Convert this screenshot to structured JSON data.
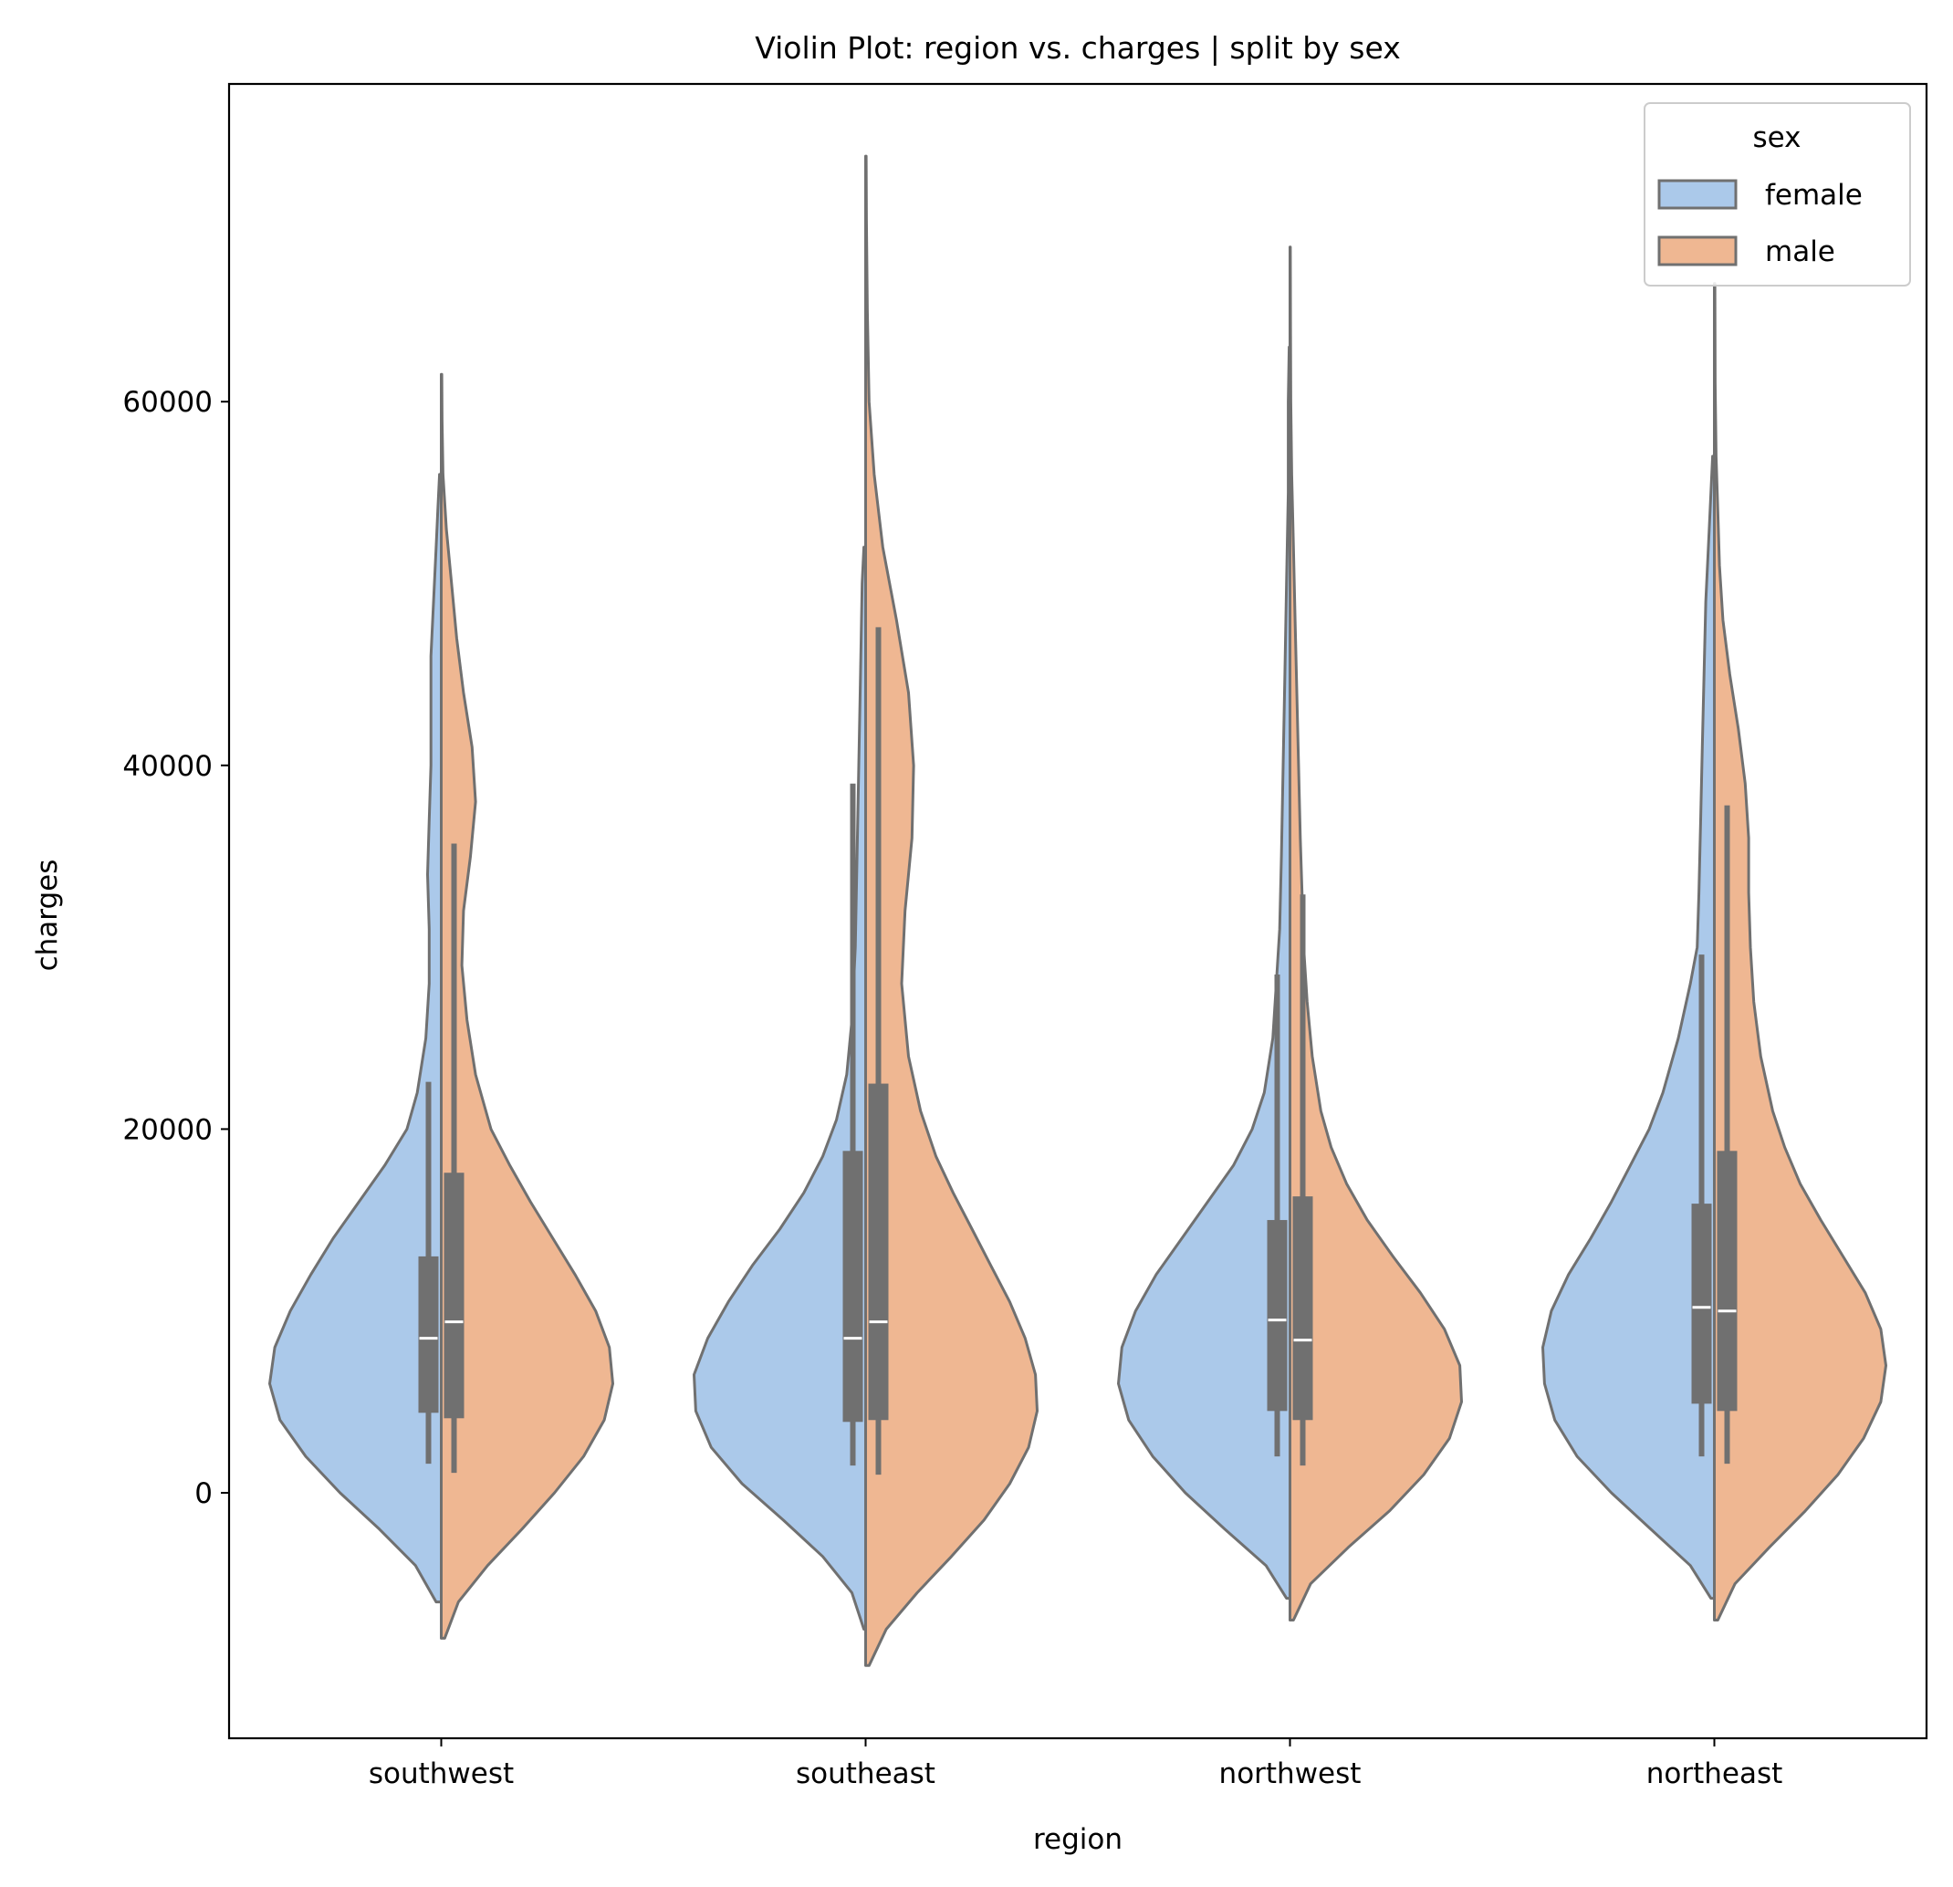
{
  "chart_data": {
    "type": "violin",
    "title": "Violin Plot: region vs. charges | split by sex",
    "xlabel": "region",
    "ylabel": "charges",
    "categories": [
      "southwest",
      "southeast",
      "northwest",
      "northeast"
    ],
    "ylim": [
      -13500,
      77500
    ],
    "yticks": [
      0,
      20000,
      40000,
      60000
    ],
    "grid": false,
    "split": true,
    "legend": {
      "title": "sex",
      "placement": "top-right",
      "entries": [
        "female",
        "male"
      ]
    },
    "colors": {
      "female": "#abc9ea",
      "male": "#efb792",
      "outline": "#707070",
      "box": "#707070",
      "median": "#ffffff"
    },
    "series": [
      {
        "name": "female",
        "violins": [
          {
            "category": "southwest",
            "density_y": [
              -6000,
              -4000,
              -2000,
              0,
              2000,
              4000,
              6000,
              8000,
              10000,
              12000,
              14000,
              16000,
              18000,
              20000,
              22000,
              25000,
              28000,
              31000,
              34000,
              37000,
              40000,
              43000,
              46000,
              48000,
              50000,
              52000,
              54000,
              56000
            ],
            "density_w": [
              0.03,
              0.15,
              0.36,
              0.59,
              0.79,
              0.94,
              1.0,
              0.97,
              0.88,
              0.76,
              0.63,
              0.48,
              0.33,
              0.2,
              0.14,
              0.09,
              0.07,
              0.07,
              0.08,
              0.07,
              0.06,
              0.06,
              0.06,
              0.05,
              0.04,
              0.03,
              0.02,
              0.01
            ],
            "box": {
              "whisker_low": 1600,
              "q1": 4400,
              "median": 8500,
              "q3": 13000,
              "whisker_high": 22600
            }
          },
          {
            "category": "southeast",
            "density_y": [
              -7500,
              -5500,
              -3500,
              -1500,
              500,
              2500,
              4500,
              6500,
              8500,
              10500,
              12500,
              14500,
              16500,
              18500,
              20500,
              23000,
              26000,
              30000,
              35000,
              40000,
              45000,
              50000,
              52000
            ],
            "density_w": [
              0.01,
              0.08,
              0.25,
              0.48,
              0.72,
              0.9,
              0.99,
              1.0,
              0.92,
              0.8,
              0.66,
              0.5,
              0.36,
              0.25,
              0.17,
              0.11,
              0.08,
              0.06,
              0.05,
              0.04,
              0.03,
              0.02,
              0.01
            ],
            "box": {
              "whisker_low": 1500,
              "q1": 3900,
              "median": 8500,
              "q3": 18800,
              "whisker_high": 39000
            }
          },
          {
            "category": "northwest",
            "density_y": [
              -5800,
              -4000,
              -2000,
              0,
              2000,
              4000,
              6000,
              8000,
              10000,
              12000,
              14000,
              16000,
              18000,
              20000,
              22000,
              25000,
              28000,
              31000,
              35000,
              40000,
              45000,
              50000,
              55000,
              60000,
              63000
            ],
            "density_w": [
              0.02,
              0.14,
              0.38,
              0.61,
              0.8,
              0.94,
              1.0,
              0.98,
              0.9,
              0.78,
              0.63,
              0.48,
              0.33,
              0.22,
              0.15,
              0.1,
              0.08,
              0.06,
              0.05,
              0.04,
              0.03,
              0.02,
              0.01,
              0.01,
              0.005
            ],
            "box": {
              "whisker_low": 2000,
              "q1": 4500,
              "median": 9500,
              "q3": 15000,
              "whisker_high": 28500
            }
          },
          {
            "category": "northeast",
            "density_y": [
              -5800,
              -4000,
              -2000,
              0,
              2000,
              4000,
              6000,
              8000,
              10000,
              12000,
              14000,
              16000,
              18000,
              20000,
              22000,
              25000,
              28000,
              30000,
              33000,
              37000,
              41000,
              45000,
              49000,
              53000,
              57000
            ],
            "density_w": [
              0.02,
              0.14,
              0.37,
              0.6,
              0.8,
              0.93,
              0.99,
              1.0,
              0.95,
              0.85,
              0.72,
              0.6,
              0.49,
              0.38,
              0.3,
              0.21,
              0.14,
              0.1,
              0.09,
              0.08,
              0.07,
              0.06,
              0.05,
              0.03,
              0.01
            ],
            "box": {
              "whisker_low": 2000,
              "q1": 4900,
              "median": 10200,
              "q3": 15900,
              "whisker_high": 29600
            }
          }
        ]
      },
      {
        "name": "male",
        "violins": [
          {
            "category": "southwest",
            "density_y": [
              -8000,
              -6000,
              -4000,
              -2000,
              0,
              2000,
              4000,
              6000,
              8000,
              10000,
              12000,
              14000,
              16000,
              18000,
              20000,
              23000,
              26000,
              29000,
              32000,
              35000,
              38000,
              41000,
              44000,
              47000,
              50000,
              53000,
              56000,
              59000,
              61500
            ],
            "density_w": [
              0.02,
              0.1,
              0.27,
              0.47,
              0.66,
              0.83,
              0.95,
              1.0,
              0.98,
              0.9,
              0.78,
              0.65,
              0.52,
              0.4,
              0.29,
              0.2,
              0.15,
              0.12,
              0.13,
              0.17,
              0.2,
              0.18,
              0.13,
              0.09,
              0.06,
              0.03,
              0.01,
              0.005,
              0.003
            ],
            "box": {
              "whisker_low": 1100,
              "q1": 4100,
              "median": 9400,
              "q3": 17600,
              "whisker_high": 35700
            }
          },
          {
            "category": "southeast",
            "density_y": [
              -9500,
              -7500,
              -5500,
              -3500,
              -1500,
              500,
              2500,
              4500,
              6500,
              8500,
              10500,
              12500,
              14500,
              16500,
              18500,
              21000,
              24000,
              28000,
              32000,
              36000,
              40000,
              44000,
              48000,
              52000,
              56000,
              60000,
              65000,
              70000,
              73500
            ],
            "density_w": [
              0.02,
              0.12,
              0.3,
              0.5,
              0.69,
              0.84,
              0.95,
              1.0,
              0.99,
              0.93,
              0.84,
              0.73,
              0.62,
              0.51,
              0.41,
              0.32,
              0.25,
              0.21,
              0.23,
              0.27,
              0.28,
              0.25,
              0.18,
              0.1,
              0.05,
              0.02,
              0.01,
              0.005,
              0.003
            ],
            "box": {
              "whisker_low": 1000,
              "q1": 4000,
              "median": 9400,
              "q3": 22500,
              "whisker_high": 47600
            }
          },
          {
            "category": "northwest",
            "density_y": [
              -7000,
              -5000,
              -3000,
              -1000,
              1000,
              3000,
              5000,
              7000,
              9000,
              11000,
              13000,
              15000,
              17000,
              19000,
              21000,
              24000,
              27000,
              30000,
              33000,
              36000,
              40000,
              44000,
              48000,
              52000,
              56000,
              60000,
              64000,
              68500
            ],
            "density_w": [
              0.02,
              0.12,
              0.34,
              0.58,
              0.78,
              0.93,
              1.0,
              0.99,
              0.9,
              0.76,
              0.6,
              0.45,
              0.33,
              0.24,
              0.18,
              0.13,
              0.1,
              0.08,
              0.07,
              0.06,
              0.05,
              0.04,
              0.03,
              0.02,
              0.01,
              0.005,
              0.003,
              0.002
            ],
            "box": {
              "whisker_low": 1500,
              "q1": 4000,
              "median": 8400,
              "q3": 16300,
              "whisker_high": 32900
            }
          },
          {
            "category": "northeast",
            "density_y": [
              -7000,
              -5000,
              -3000,
              -1000,
              1000,
              3000,
              5000,
              7000,
              9000,
              11000,
              13000,
              15000,
              17000,
              19000,
              21000,
              24000,
              27000,
              30000,
              33000,
              36000,
              39000,
              42000,
              45000,
              48000,
              51000,
              54000,
              57000,
              61000,
              66500
            ],
            "density_w": [
              0.02,
              0.12,
              0.32,
              0.53,
              0.72,
              0.87,
              0.97,
              1.0,
              0.97,
              0.88,
              0.75,
              0.62,
              0.5,
              0.41,
              0.34,
              0.27,
              0.23,
              0.21,
              0.2,
              0.2,
              0.18,
              0.14,
              0.09,
              0.05,
              0.03,
              0.02,
              0.01,
              0.005,
              0.003
            ],
            "box": {
              "whisker_low": 1600,
              "q1": 4500,
              "median": 10000,
              "q3": 18800,
              "whisker_high": 37800
            }
          }
        ]
      }
    ]
  }
}
